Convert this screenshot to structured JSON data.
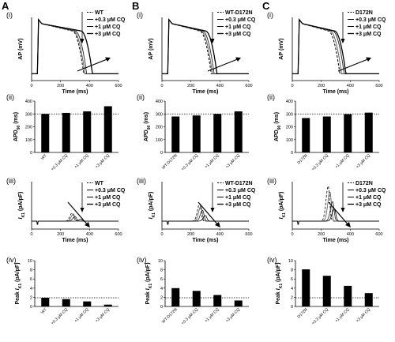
{
  "panels": [
    {
      "letter": "A",
      "ap_legend": [
        "WT",
        "+0.3 μM CQ",
        "+1 μM CQ",
        "+3 μM CQ"
      ],
      "ik1_legend": [
        "WT",
        "+0.3 μM CQ",
        "+1 μM CQ",
        "+3 μM CQ"
      ],
      "apd_bar": {
        "categories": [
          "WT",
          "+0.3 μM CQ",
          "+1 μM CQ",
          "+3 μM CQ"
        ],
        "values": [
          300,
          308,
          320,
          360
        ]
      },
      "peak_bar": {
        "categories": [
          "WT",
          "+0.3 μM CQ",
          "+1 μM CQ",
          "+3 μM CQ"
        ],
        "values": [
          1.9,
          1.6,
          1.1,
          0.4
        ]
      }
    },
    {
      "letter": "B",
      "ap_legend": [
        "WT-D172N",
        "+0.3 μM CQ",
        "+1 μM CQ",
        "+3 μM CQ"
      ],
      "ik1_legend": [
        "WT-D172N",
        "+0.3 μM CQ",
        "+1 μM CQ",
        "+3 μM CQ"
      ],
      "apd_bar": {
        "categories": [
          "WT-D172N",
          "+0.3 μM CQ",
          "+1 μM CQ",
          "+3 μM CQ"
        ],
        "values": [
          280,
          288,
          300,
          320
        ]
      },
      "peak_bar": {
        "categories": [
          "WT-D172N",
          "+0.3 μM CQ",
          "+1 μM CQ",
          "+3 μM CQ"
        ],
        "values": [
          4.0,
          3.4,
          2.5,
          1.3
        ]
      }
    },
    {
      "letter": "C",
      "ap_legend": [
        "D172N",
        "+0.3 μM CQ",
        "+1 μM CQ",
        "+3 μM CQ"
      ],
      "ik1_legend": [
        "D172N",
        "+0.3 μM CQ",
        "+1 μM CQ",
        "+3 μM CQ"
      ],
      "apd_bar": {
        "categories": [
          "D172N",
          "+0.3 μM CQ",
          "+1 μM CQ",
          "+3 μM CQ"
        ],
        "values": [
          268,
          280,
          298,
          310
        ]
      },
      "peak_bar": {
        "categories": [
          "D172N",
          "+0.3 μM CQ",
          "+1 μM CQ",
          "+3 μM CQ"
        ],
        "values": [
          8.1,
          6.7,
          4.5,
          2.9
        ]
      }
    }
  ],
  "roman": [
    "(i)",
    "(ii)",
    "(iii)",
    "(iv)"
  ],
  "labels": {
    "ap_ylabel": "AP (mV)",
    "time_xlabel": "Time (ms)",
    "apd_ylabel_main": "APD",
    "apd_ylabel_sub": "90",
    "apd_ylabel_unit": " (ms)",
    "ik1_ylabel_i": "I",
    "ik1_ylabel_sub": "K1",
    "ik1_ylabel_unit": " (pA/pF)",
    "peak_ylabel_prefix": "Peak ",
    "time_ticks": [
      "0",
      "200",
      "400",
      "600"
    ],
    "apd_ticks": [
      "0",
      "100",
      "200",
      "300",
      "400"
    ],
    "peak_ticks": [
      "0",
      "2",
      "4",
      "6",
      "8",
      "10"
    ]
  },
  "chart_data": [
    {
      "type": "line",
      "panel": "A",
      "xlabel": "Time (ms)",
      "ylabel": "AP (mV)",
      "x_range": [
        0,
        600
      ],
      "series": [
        {
          "name": "WT"
        },
        {
          "name": "+0.3 μM CQ"
        },
        {
          "name": "+1 μM CQ"
        },
        {
          "name": "+3 μM CQ"
        }
      ]
    },
    {
      "type": "bar",
      "panel": "A",
      "ylabel": "APD90 (ms)",
      "ylim": [
        0,
        400
      ],
      "reference_line": 300,
      "categories": [
        "WT",
        "+0.3 μM CQ",
        "+1 μM CQ",
        "+3 μM CQ"
      ],
      "values": [
        300,
        308,
        320,
        360
      ]
    },
    {
      "type": "line",
      "panel": "A",
      "xlabel": "Time (ms)",
      "ylabel": "IK1 (pA/pF)",
      "x_range": [
        0,
        600
      ],
      "series": [
        {
          "name": "WT"
        },
        {
          "name": "+0.3 μM CQ"
        },
        {
          "name": "+1 μM CQ"
        },
        {
          "name": "+3 μM CQ"
        }
      ]
    },
    {
      "type": "bar",
      "panel": "A",
      "ylabel": "Peak IK1 (pA/pF)",
      "ylim": [
        0,
        10
      ],
      "reference_line": 1.9,
      "categories": [
        "WT",
        "+0.3 μM CQ",
        "+1 μM CQ",
        "+3 μM CQ"
      ],
      "values": [
        1.9,
        1.6,
        1.1,
        0.4
      ]
    },
    {
      "type": "line",
      "panel": "B",
      "xlabel": "Time (ms)",
      "ylabel": "AP (mV)",
      "x_range": [
        0,
        600
      ],
      "series": [
        {
          "name": "WT-D172N"
        },
        {
          "name": "+0.3 μM CQ"
        },
        {
          "name": "+1 μM CQ"
        },
        {
          "name": "+3 μM CQ"
        }
      ]
    },
    {
      "type": "bar",
      "panel": "B",
      "ylabel": "APD90 (ms)",
      "ylim": [
        0,
        400
      ],
      "reference_line": 300,
      "categories": [
        "WT-D172N",
        "+0.3 μM CQ",
        "+1 μM CQ",
        "+3 μM CQ"
      ],
      "values": [
        280,
        288,
        300,
        320
      ]
    },
    {
      "type": "line",
      "panel": "B",
      "xlabel": "Time (ms)",
      "ylabel": "IK1 (pA/pF)",
      "x_range": [
        0,
        600
      ],
      "series": [
        {
          "name": "WT-D172N"
        },
        {
          "name": "+0.3 μM CQ"
        },
        {
          "name": "+1 μM CQ"
        },
        {
          "name": "+3 μM CQ"
        }
      ]
    },
    {
      "type": "bar",
      "panel": "B",
      "ylabel": "Peak IK1 (pA/pF)",
      "ylim": [
        0,
        10
      ],
      "reference_line": 1.9,
      "categories": [
        "WT-D172N",
        "+0.3 μM CQ",
        "+1 μM CQ",
        "+3 μM CQ"
      ],
      "values": [
        4.0,
        3.4,
        2.5,
        1.3
      ]
    },
    {
      "type": "line",
      "panel": "C",
      "xlabel": "Time (ms)",
      "ylabel": "AP (mV)",
      "x_range": [
        0,
        600
      ],
      "series": [
        {
          "name": "D172N"
        },
        {
          "name": "+0.3 μM CQ"
        },
        {
          "name": "+1 μM CQ"
        },
        {
          "name": "+3 μM CQ"
        }
      ]
    },
    {
      "type": "bar",
      "panel": "C",
      "ylabel": "APD90 (ms)",
      "ylim": [
        0,
        400
      ],
      "reference_line": 300,
      "categories": [
        "D172N",
        "+0.3 μM CQ",
        "+1 μM CQ",
        "+3 μM CQ"
      ],
      "values": [
        268,
        280,
        298,
        310
      ]
    },
    {
      "type": "line",
      "panel": "C",
      "xlabel": "Time (ms)",
      "ylabel": "IK1 (pA/pF)",
      "x_range": [
        0,
        600
      ],
      "series": [
        {
          "name": "D172N"
        },
        {
          "name": "+0.3 μM CQ"
        },
        {
          "name": "+1 μM CQ"
        },
        {
          "name": "+3 μM CQ"
        }
      ]
    },
    {
      "type": "bar",
      "panel": "C",
      "ylabel": "Peak IK1 (pA/pF)",
      "ylim": [
        0,
        10
      ],
      "reference_line": 1.9,
      "categories": [
        "D172N",
        "+0.3 μM CQ",
        "+1 μM CQ",
        "+3 μM CQ"
      ],
      "values": [
        8.1,
        6.7,
        4.5,
        2.9
      ]
    }
  ]
}
